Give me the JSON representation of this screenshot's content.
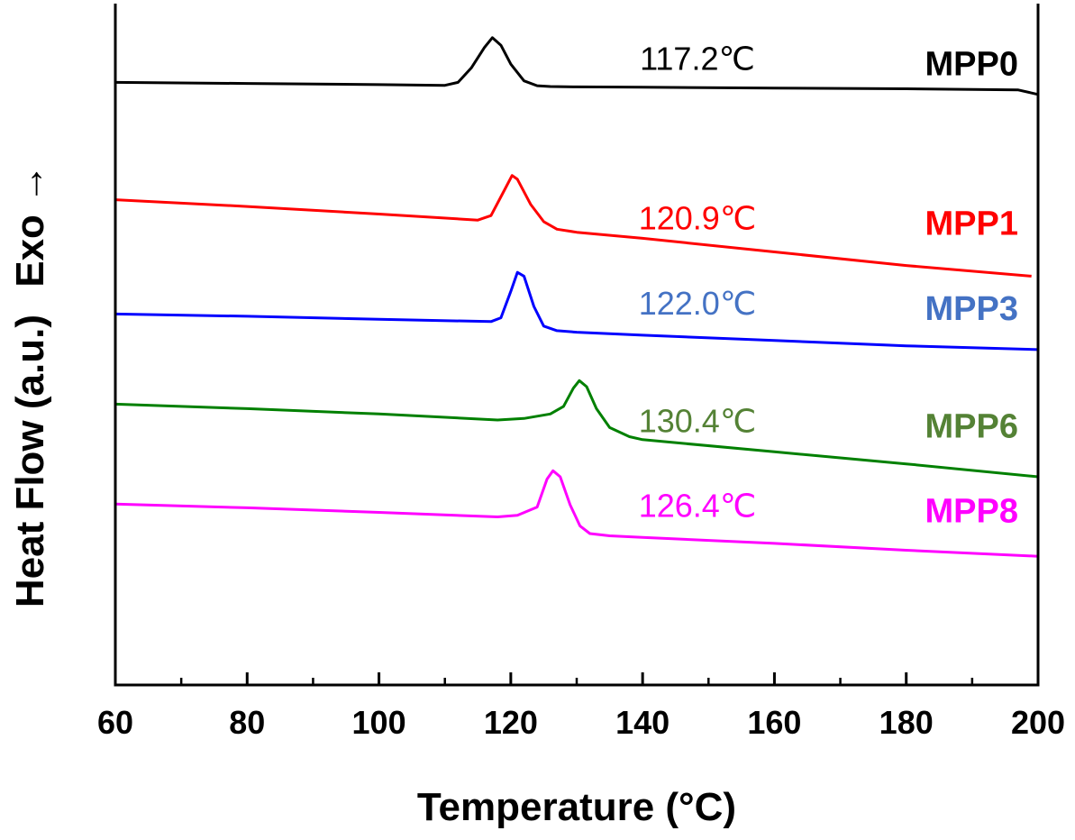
{
  "chart_data": {
    "type": "line",
    "title": "",
    "xlabel": "Temperature (°C)",
    "ylabel": "Heat Flow (a.u.)",
    "ylabel_suffix": "Exo →",
    "xlim": [
      60,
      200
    ],
    "xticks": [
      60,
      80,
      100,
      120,
      140,
      160,
      180,
      200
    ],
    "x_minor_step": 10,
    "y_units": "arbitrary",
    "grid": false,
    "legend": "none",
    "series": [
      {
        "name": "MPP0",
        "color": "#000000",
        "label_color": "#000000",
        "peak_label": "117.2℃",
        "peak_temp": 117.2,
        "x": [
          60,
          80,
          100,
          110,
          112,
          114,
          116,
          117.2,
          118.5,
          120,
          122,
          124,
          126,
          130,
          140,
          160,
          180,
          197,
          200
        ],
        "y": [
          7.96,
          7.945,
          7.93,
          7.92,
          7.96,
          8.15,
          8.42,
          8.55,
          8.45,
          8.2,
          7.98,
          7.915,
          7.905,
          7.9,
          7.895,
          7.885,
          7.875,
          7.86,
          7.8
        ]
      },
      {
        "name": "MPP1",
        "color": "#ff0000",
        "label_color": "#ff0000",
        "peak_label": "120.9℃",
        "peak_temp": 120.9,
        "x": [
          60,
          80,
          100,
          115,
          117,
          119,
          120.2,
          121,
          123,
          125,
          127,
          130,
          140,
          160,
          180,
          199
        ],
        "y": [
          6.41,
          6.32,
          6.22,
          6.14,
          6.2,
          6.53,
          6.73,
          6.68,
          6.35,
          6.12,
          6.02,
          5.98,
          5.9,
          5.72,
          5.54,
          5.4
        ]
      },
      {
        "name": "MPP3",
        "color": "#0000ff",
        "label_color": "#4472c4",
        "peak_label": "122.0℃",
        "peak_temp": 122.0,
        "x": [
          60,
          80,
          100,
          117,
          118.5,
          120,
          121,
          122,
          123.5,
          125,
          127,
          130,
          140,
          160,
          180,
          200
        ],
        "y": [
          4.9,
          4.87,
          4.83,
          4.8,
          4.85,
          5.2,
          5.45,
          5.4,
          5.0,
          4.74,
          4.68,
          4.66,
          4.62,
          4.55,
          4.48,
          4.43
        ]
      },
      {
        "name": "MPP6",
        "color": "#008000",
        "label_color": "#548235",
        "peak_label": "130.4℃",
        "peak_temp": 130.4,
        "x": [
          60,
          80,
          100,
          118,
          122,
          126,
          128,
          129.5,
          130.4,
          131.5,
          133,
          135,
          138,
          140,
          160,
          180,
          200
        ],
        "y": [
          3.71,
          3.65,
          3.58,
          3.5,
          3.52,
          3.58,
          3.68,
          3.92,
          4.02,
          3.94,
          3.65,
          3.4,
          3.28,
          3.24,
          3.08,
          2.92,
          2.75
        ]
      },
      {
        "name": "MPP8",
        "color": "#ff00ff",
        "label_color": "#ff00ff",
        "peak_label": "126.4℃",
        "peak_temp": 126.4,
        "x": [
          60,
          80,
          100,
          118,
          121,
          124,
          125.5,
          126.4,
          127.5,
          129,
          130.5,
          132,
          135,
          140,
          160,
          180,
          200
        ],
        "y": [
          2.39,
          2.34,
          2.28,
          2.22,
          2.24,
          2.35,
          2.72,
          2.83,
          2.75,
          2.38,
          2.1,
          2.0,
          1.97,
          1.95,
          1.87,
          1.78,
          1.7
        ]
      }
    ]
  }
}
